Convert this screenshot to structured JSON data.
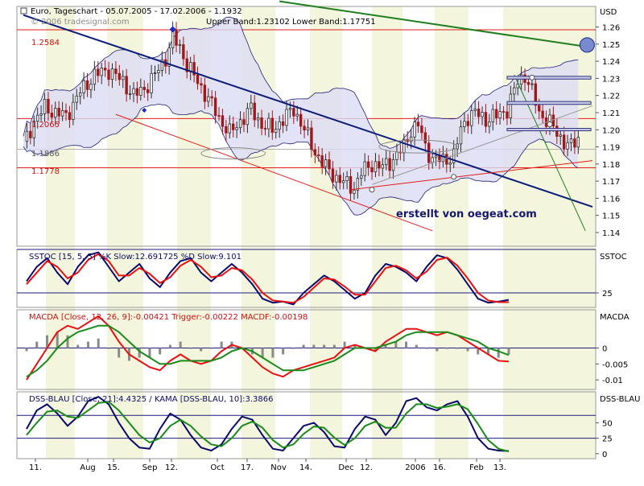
{
  "colors": {
    "candle_up": "#2b2b2b",
    "candle_down": "#a01818",
    "bollinger_fill": "#dcdcf5",
    "bollinger_line": "#20207a",
    "blue_trend": "#0b1c7a",
    "red_line": "#e21b1b",
    "green_line": "#1f7f1f",
    "grey_line": "#9a9a9a",
    "stoch_k": "#0a0a6a",
    "stoch_d": "#e81010",
    "macd_line": "#e81010",
    "trigger_line": "#1a8a1a",
    "histogram": "#8a8a8a",
    "dss_line": "#0a0a6a",
    "kama_line": "#1a8a1a",
    "band_light": "#f3f6dc",
    "annotation_text": "#16166e"
  },
  "header": {
    "title": "Euro, Tageschart - 05.07.2005 - 17.02.2006 - 1.1932",
    "bands_text": "Upper Band:1.23102 Lower Band:1.17751",
    "watermark": "© 2006 tradesignal.com",
    "currency": "USD"
  },
  "annotations": {
    "author": "erstellt von oegeat.com",
    "level_1": "1.2584",
    "level_2": "1.2065",
    "level_3": "1.1886",
    "level_4": "1.1778"
  },
  "x_axis": {
    "labels": [
      "11.",
      "Aug",
      "15.",
      "Sep",
      "12.",
      "Oct",
      "17.",
      "Nov",
      "14.",
      "Dec",
      "12.",
      "2006",
      "16.",
      "Feb",
      "13."
    ]
  },
  "chart_data": [
    {
      "type": "candlestick",
      "title": "Euro, Tageschart - 05.07.2005 - 17.02.2006 - 1.1932",
      "ylabel": "USD",
      "ylim": [
        1.132,
        1.272
      ],
      "yticks": [
        1.14,
        1.15,
        1.16,
        1.17,
        1.18,
        1.19,
        1.2,
        1.21,
        1.22,
        1.23,
        1.24,
        1.25,
        1.26
      ],
      "x_ticks": [
        "11.",
        "Aug",
        "15.",
        "Sep",
        "12.",
        "Oct",
        "17.",
        "Nov",
        "14.",
        "Dec",
        "12.",
        "2006",
        "16.",
        "Feb",
        "13."
      ],
      "close_path": [
        {
          "t": 0,
          "v": 1.191
        },
        {
          "t": 3,
          "v": 1.205
        },
        {
          "t": 6,
          "v": 1.213
        },
        {
          "t": 9,
          "v": 1.21
        },
        {
          "t": 12,
          "v": 1.208
        },
        {
          "t": 16,
          "v": 1.222
        },
        {
          "t": 20,
          "v": 1.232
        },
        {
          "t": 24,
          "v": 1.235
        },
        {
          "t": 28,
          "v": 1.228
        },
        {
          "t": 31,
          "v": 1.22
        },
        {
          "t": 34,
          "v": 1.224
        },
        {
          "t": 37,
          "v": 1.232
        },
        {
          "t": 40,
          "v": 1.242
        },
        {
          "t": 42,
          "v": 1.254
        },
        {
          "t": 44,
          "v": 1.248
        },
        {
          "t": 46,
          "v": 1.238
        },
        {
          "t": 49,
          "v": 1.228
        },
        {
          "t": 52,
          "v": 1.218
        },
        {
          "t": 55,
          "v": 1.207
        },
        {
          "t": 58,
          "v": 1.198
        },
        {
          "t": 61,
          "v": 1.205
        },
        {
          "t": 64,
          "v": 1.212
        },
        {
          "t": 67,
          "v": 1.203
        },
        {
          "t": 70,
          "v": 1.2
        },
        {
          "t": 73,
          "v": 1.206
        },
        {
          "t": 76,
          "v": 1.212
        },
        {
          "t": 79,
          "v": 1.2
        },
        {
          "t": 82,
          "v": 1.187
        },
        {
          "t": 85,
          "v": 1.178
        },
        {
          "t": 88,
          "v": 1.172
        },
        {
          "t": 91,
          "v": 1.168
        },
        {
          "t": 93,
          "v": 1.166
        },
        {
          "t": 95,
          "v": 1.175
        },
        {
          "t": 98,
          "v": 1.18
        },
        {
          "t": 101,
          "v": 1.178
        },
        {
          "t": 104,
          "v": 1.183
        },
        {
          "t": 107,
          "v": 1.19
        },
        {
          "t": 109,
          "v": 1.2
        },
        {
          "t": 111,
          "v": 1.203
        },
        {
          "t": 113,
          "v": 1.19
        },
        {
          "t": 115,
          "v": 1.183
        },
        {
          "t": 118,
          "v": 1.182
        },
        {
          "t": 121,
          "v": 1.185
        },
        {
          "t": 123,
          "v": 1.2
        },
        {
          "t": 125,
          "v": 1.208
        },
        {
          "t": 127,
          "v": 1.21
        },
        {
          "t": 130,
          "v": 1.206
        },
        {
          "t": 133,
          "v": 1.208
        },
        {
          "t": 136,
          "v": 1.212
        },
        {
          "t": 139,
          "v": 1.228
        },
        {
          "t": 141,
          "v": 1.232
        },
        {
          "t": 143,
          "v": 1.222
        },
        {
          "t": 145,
          "v": 1.21
        },
        {
          "t": 148,
          "v": 1.204
        },
        {
          "t": 150,
          "v": 1.198
        },
        {
          "t": 152,
          "v": 1.193
        },
        {
          "t": 154,
          "v": 1.19
        },
        {
          "t": 156,
          "v": 1.195
        }
      ]
    },
    {
      "type": "line",
      "title": "SSTOC [15, 5, 5] %K Slow:12.691725 %D Slow:9.101",
      "ylabel": "SSTOC",
      "ylim": [
        0,
        100
      ],
      "yticks": [
        25
      ],
      "series": [
        {
          "name": "%K Slow",
          "values": [
            45,
            70,
            85,
            60,
            40,
            70,
            90,
            95,
            70,
            45,
            60,
            75,
            50,
            35,
            60,
            80,
            85,
            60,
            45,
            60,
            75,
            60,
            40,
            15,
            8,
            10,
            5,
            25,
            40,
            55,
            45,
            30,
            15,
            25,
            55,
            75,
            70,
            60,
            45,
            70,
            90,
            85,
            65,
            40,
            15,
            8,
            10,
            13
          ]
        },
        {
          "name": "%D Slow",
          "values": [
            40,
            60,
            80,
            70,
            50,
            60,
            82,
            92,
            80,
            55,
            55,
            68,
            58,
            42,
            52,
            72,
            82,
            70,
            52,
            55,
            68,
            64,
            48,
            25,
            12,
            10,
            8,
            18,
            34,
            50,
            48,
            36,
            22,
            22,
            45,
            68,
            72,
            64,
            50,
            62,
            82,
            86,
            72,
            50,
            25,
            12,
            9,
            9
          ]
        }
      ]
    },
    {
      "type": "line",
      "title": "MACDA [Close, 12, 26, 9]:-0.00421 Trigger:-0.00222 MACDF:-0.00198",
      "ylabel": "MACDA",
      "ylim": [
        -0.013,
        0.012
      ],
      "yticks": [
        0,
        -0.005,
        -0.01
      ],
      "series": [
        {
          "name": "MACDA",
          "values": [
            -0.01,
            -0.005,
            0.0,
            0.005,
            0.007,
            0.006,
            0.008,
            0.01,
            0.007,
            0.002,
            -0.002,
            -0.004,
            -0.006,
            -0.007,
            -0.004,
            -0.002,
            -0.004,
            -0.005,
            -0.004,
            -0.001,
            0.001,
            0.0,
            -0.003,
            -0.006,
            -0.008,
            -0.009,
            -0.007,
            -0.006,
            -0.005,
            -0.004,
            -0.003,
            0.0,
            0.001,
            0.0,
            -0.001,
            0.002,
            0.004,
            0.006,
            0.006,
            0.005,
            0.004,
            0.005,
            0.004,
            0.002,
            0.0,
            -0.002,
            -0.004,
            -0.00421
          ]
        },
        {
          "name": "Trigger",
          "values": [
            -0.009,
            -0.007,
            -0.004,
            0.0,
            0.003,
            0.005,
            0.006,
            0.007,
            0.007,
            0.005,
            0.002,
            -0.001,
            -0.003,
            -0.005,
            -0.005,
            -0.004,
            -0.004,
            -0.004,
            -0.004,
            -0.003,
            -0.001,
            0.0,
            -0.001,
            -0.003,
            -0.005,
            -0.007,
            -0.007,
            -0.007,
            -0.006,
            -0.005,
            -0.004,
            -0.002,
            0.0,
            0.0,
            0.0,
            0.001,
            0.002,
            0.004,
            0.005,
            0.005,
            0.005,
            0.005,
            0.004,
            0.003,
            0.002,
            0.0,
            -0.001,
            -0.00222
          ]
        }
      ]
    },
    {
      "type": "line",
      "title": "DSS-BLAU [Close, 21]:4.4325 / KAMA [DSS-BLAU, 10]:3.3866",
      "ylabel": "DSS-BLAU",
      "ylim": [
        -8,
        100
      ],
      "yticks": [
        0,
        25,
        50
      ],
      "series": [
        {
          "name": "DSS-BLAU",
          "values": [
            40,
            70,
            80,
            65,
            45,
            60,
            85,
            92,
            80,
            50,
            25,
            10,
            8,
            40,
            65,
            55,
            30,
            10,
            5,
            15,
            40,
            60,
            55,
            30,
            8,
            5,
            25,
            45,
            50,
            35,
            12,
            10,
            40,
            60,
            55,
            30,
            50,
            85,
            90,
            75,
            70,
            80,
            85,
            60,
            25,
            8,
            5,
            4.4
          ]
        },
        {
          "name": "KAMA",
          "values": [
            30,
            50,
            68,
            70,
            60,
            58,
            70,
            82,
            84,
            70,
            50,
            30,
            18,
            25,
            45,
            55,
            45,
            28,
            15,
            12,
            25,
            45,
            52,
            42,
            22,
            10,
            15,
            32,
            44,
            42,
            26,
            14,
            25,
            45,
            52,
            42,
            42,
            65,
            80,
            80,
            74,
            76,
            80,
            72,
            48,
            22,
            8,
            3.4
          ]
        }
      ]
    }
  ]
}
